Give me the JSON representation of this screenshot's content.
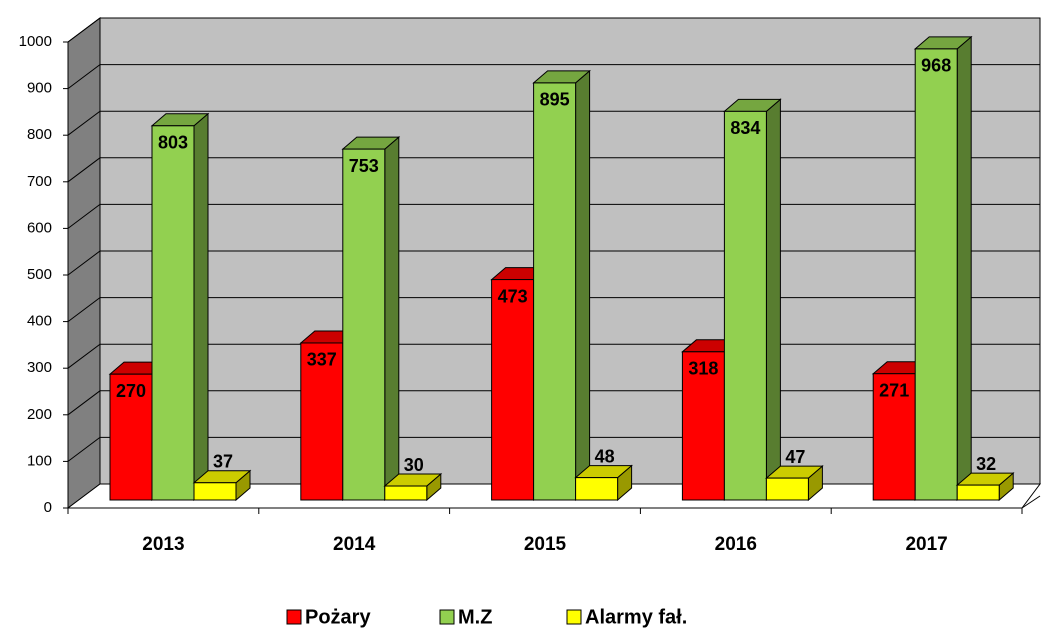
{
  "chart_data": {
    "type": "bar3d",
    "categories": [
      "2013",
      "2014",
      "2015",
      "2016",
      "2017"
    ],
    "series": [
      {
        "name": "Pożary",
        "color": "#ff0000",
        "values": [
          270,
          337,
          473,
          318,
          271
        ]
      },
      {
        "name": "M.Z",
        "color": "#92d050",
        "values": [
          803,
          753,
          895,
          834,
          968
        ]
      },
      {
        "name": "Alarmy fał.",
        "color": "#ffff00",
        "values": [
          37,
          30,
          48,
          47,
          32
        ]
      }
    ],
    "ylim": [
      0,
      1000
    ],
    "yticks": [
      0,
      100,
      200,
      300,
      400,
      500,
      600,
      700,
      800,
      900,
      1000
    ],
    "grid": true,
    "legend": "bottom"
  }
}
